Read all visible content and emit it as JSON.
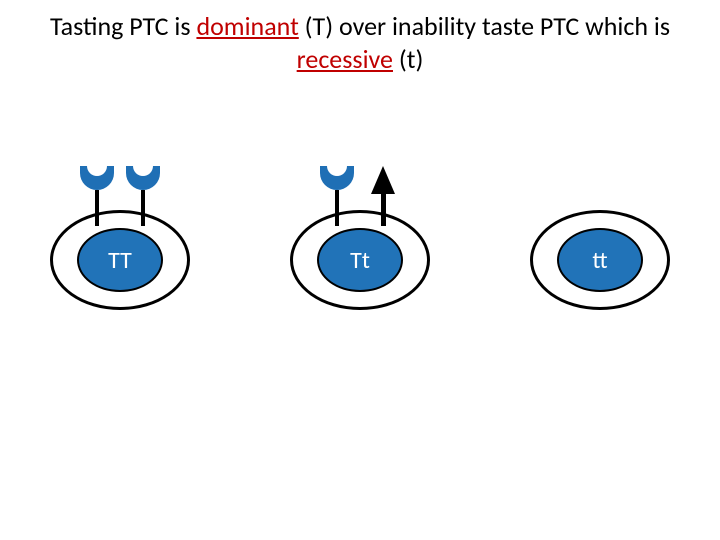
{
  "title": {
    "part1": "Tasting PTC is ",
    "dominant": "dominant",
    "part2": " (T) over inability taste PTC which is ",
    "recessive": "recessive",
    "part3": " (t)"
  },
  "colors": {
    "red": "#c00000",
    "blue_fill": "#2173b8",
    "receptor_blue": "#1f6fb5",
    "black": "#000000"
  },
  "cells": [
    {
      "genotype": "TT",
      "receptors": [
        "functional",
        "functional"
      ]
    },
    {
      "genotype": "Tt",
      "receptors": [
        "functional",
        "blocked"
      ]
    },
    {
      "genotype": "tt",
      "receptors": []
    }
  ]
}
